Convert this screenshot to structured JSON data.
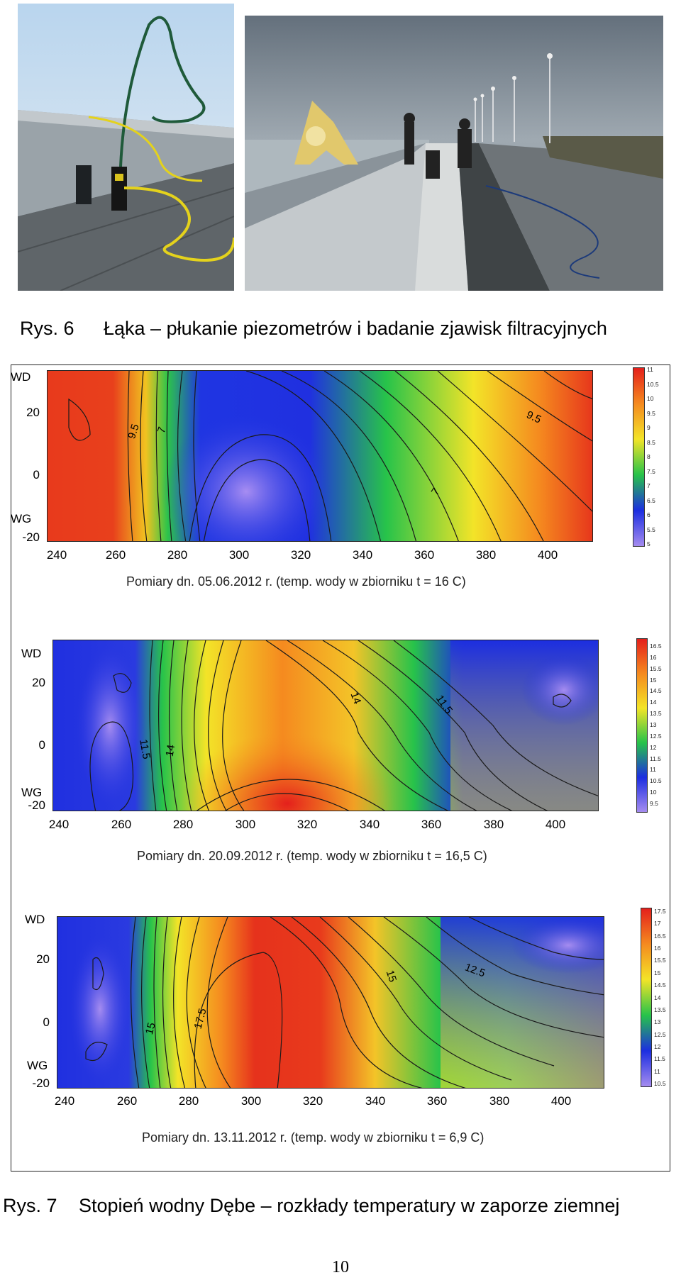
{
  "figure6": {
    "number": "Rys. 6",
    "caption": "Łąka – płukanie piezometrów i badanie zjawisk filtracyjnych"
  },
  "figure7": {
    "number": "Rys. 7",
    "caption": "Stopień wodny Dębe – rozkłady temperatury w zaporze ziemnej"
  },
  "page_number": "10",
  "panels": [
    {
      "title": "Pomiary dn. 05.06.2012 r. (temp. wody w zbiorniku t = 16 C)",
      "label_top": "WD",
      "label_bottom": "WG",
      "y_ticks": [
        "20",
        "0",
        "-20"
      ],
      "x_ticks": [
        "240",
        "260",
        "280",
        "300",
        "320",
        "340",
        "360",
        "380",
        "400"
      ],
      "colorbar": [
        "11",
        "10.5",
        "10",
        "9.5",
        "9",
        "8.5",
        "8",
        "7.5",
        "7",
        "6.5",
        "6",
        "5.5",
        "5"
      ],
      "contour_labels": [
        "9.5",
        "7",
        "7",
        "9.5"
      ]
    },
    {
      "title": "Pomiary dn. 20.09.2012 r. (temp. wody w zbiorniku t = 16,5 C)",
      "label_top": "WD",
      "label_bottom": "WG",
      "y_ticks": [
        "20",
        "0",
        "-20"
      ],
      "x_ticks": [
        "240",
        "260",
        "280",
        "300",
        "320",
        "340",
        "360",
        "380",
        "400"
      ],
      "colorbar": [
        "16.5",
        "16",
        "15.5",
        "15",
        "14.5",
        "14",
        "13.5",
        "13",
        "12.5",
        "12",
        "11.5",
        "11",
        "10.5",
        "10",
        "9.5"
      ],
      "contour_labels": [
        "14",
        "11.5",
        "11.5",
        "14"
      ]
    },
    {
      "title": "Pomiary dn. 13.11.2012 r. (temp. wody w zbiorniku t = 6,9 C)",
      "label_top": "WD",
      "label_bottom": "WG",
      "y_ticks": [
        "20",
        "0",
        "-20"
      ],
      "x_ticks": [
        "240",
        "260",
        "280",
        "300",
        "320",
        "340",
        "360",
        "380",
        "400"
      ],
      "colorbar": [
        "17.5",
        "17",
        "16.5",
        "16",
        "15.5",
        "15",
        "14.5",
        "14",
        "13.5",
        "13",
        "12.5",
        "12",
        "11.5",
        "11",
        "10.5"
      ],
      "contour_labels": [
        "17.5",
        "15",
        "15",
        "12.5"
      ]
    }
  ],
  "colors": {
    "hot": "#e4201c",
    "orange": "#f58a1f",
    "yellow": "#f3e428",
    "green": "#27c34a",
    "blue": "#1c2ee0",
    "violet": "#a58cf0"
  }
}
